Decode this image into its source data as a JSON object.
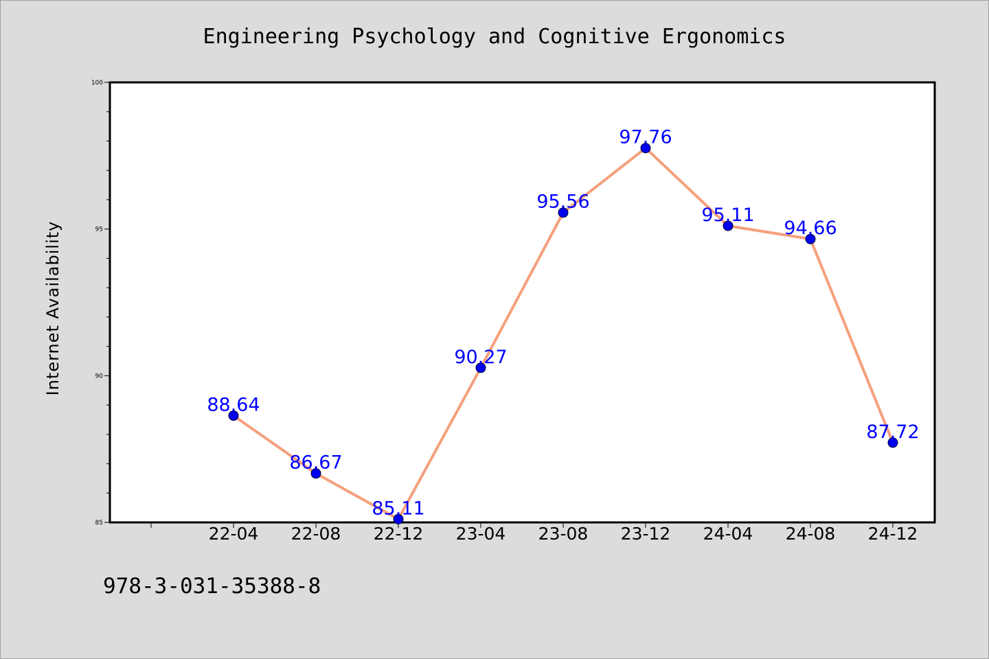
{
  "chart_data": {
    "type": "line",
    "title": "Engineering Psychology and Cognitive Ergonomics",
    "xlabel": "",
    "ylabel": "Internet Availability",
    "categories": [
      "22-04",
      "22-08",
      "22-12",
      "23-04",
      "23-08",
      "23-12",
      "24-04",
      "24-08",
      "24-12"
    ],
    "values": [
      88.64,
      86.67,
      85.11,
      90.27,
      95.56,
      97.76,
      95.11,
      94.66,
      87.72
    ],
    "data_labels": [
      "88.64",
      "86.67",
      "85.11",
      "90.27",
      "95.56",
      "97.76",
      "95.11",
      "94.66",
      "87.72"
    ],
    "ylim": [
      85,
      100
    ],
    "yticks": [
      85,
      90,
      95,
      100
    ],
    "ytick_labels": [
      "85",
      "90",
      "95",
      "100"
    ],
    "grid": false,
    "line_color": "#f4a07c",
    "marker_color": "#0000ee",
    "label_color": "#0000ff"
  },
  "footer_text": "978-3-031-35388-8",
  "colors": {
    "background": "#dcdcdc",
    "plot_background": "#ffffff",
    "axis": "#000000"
  }
}
